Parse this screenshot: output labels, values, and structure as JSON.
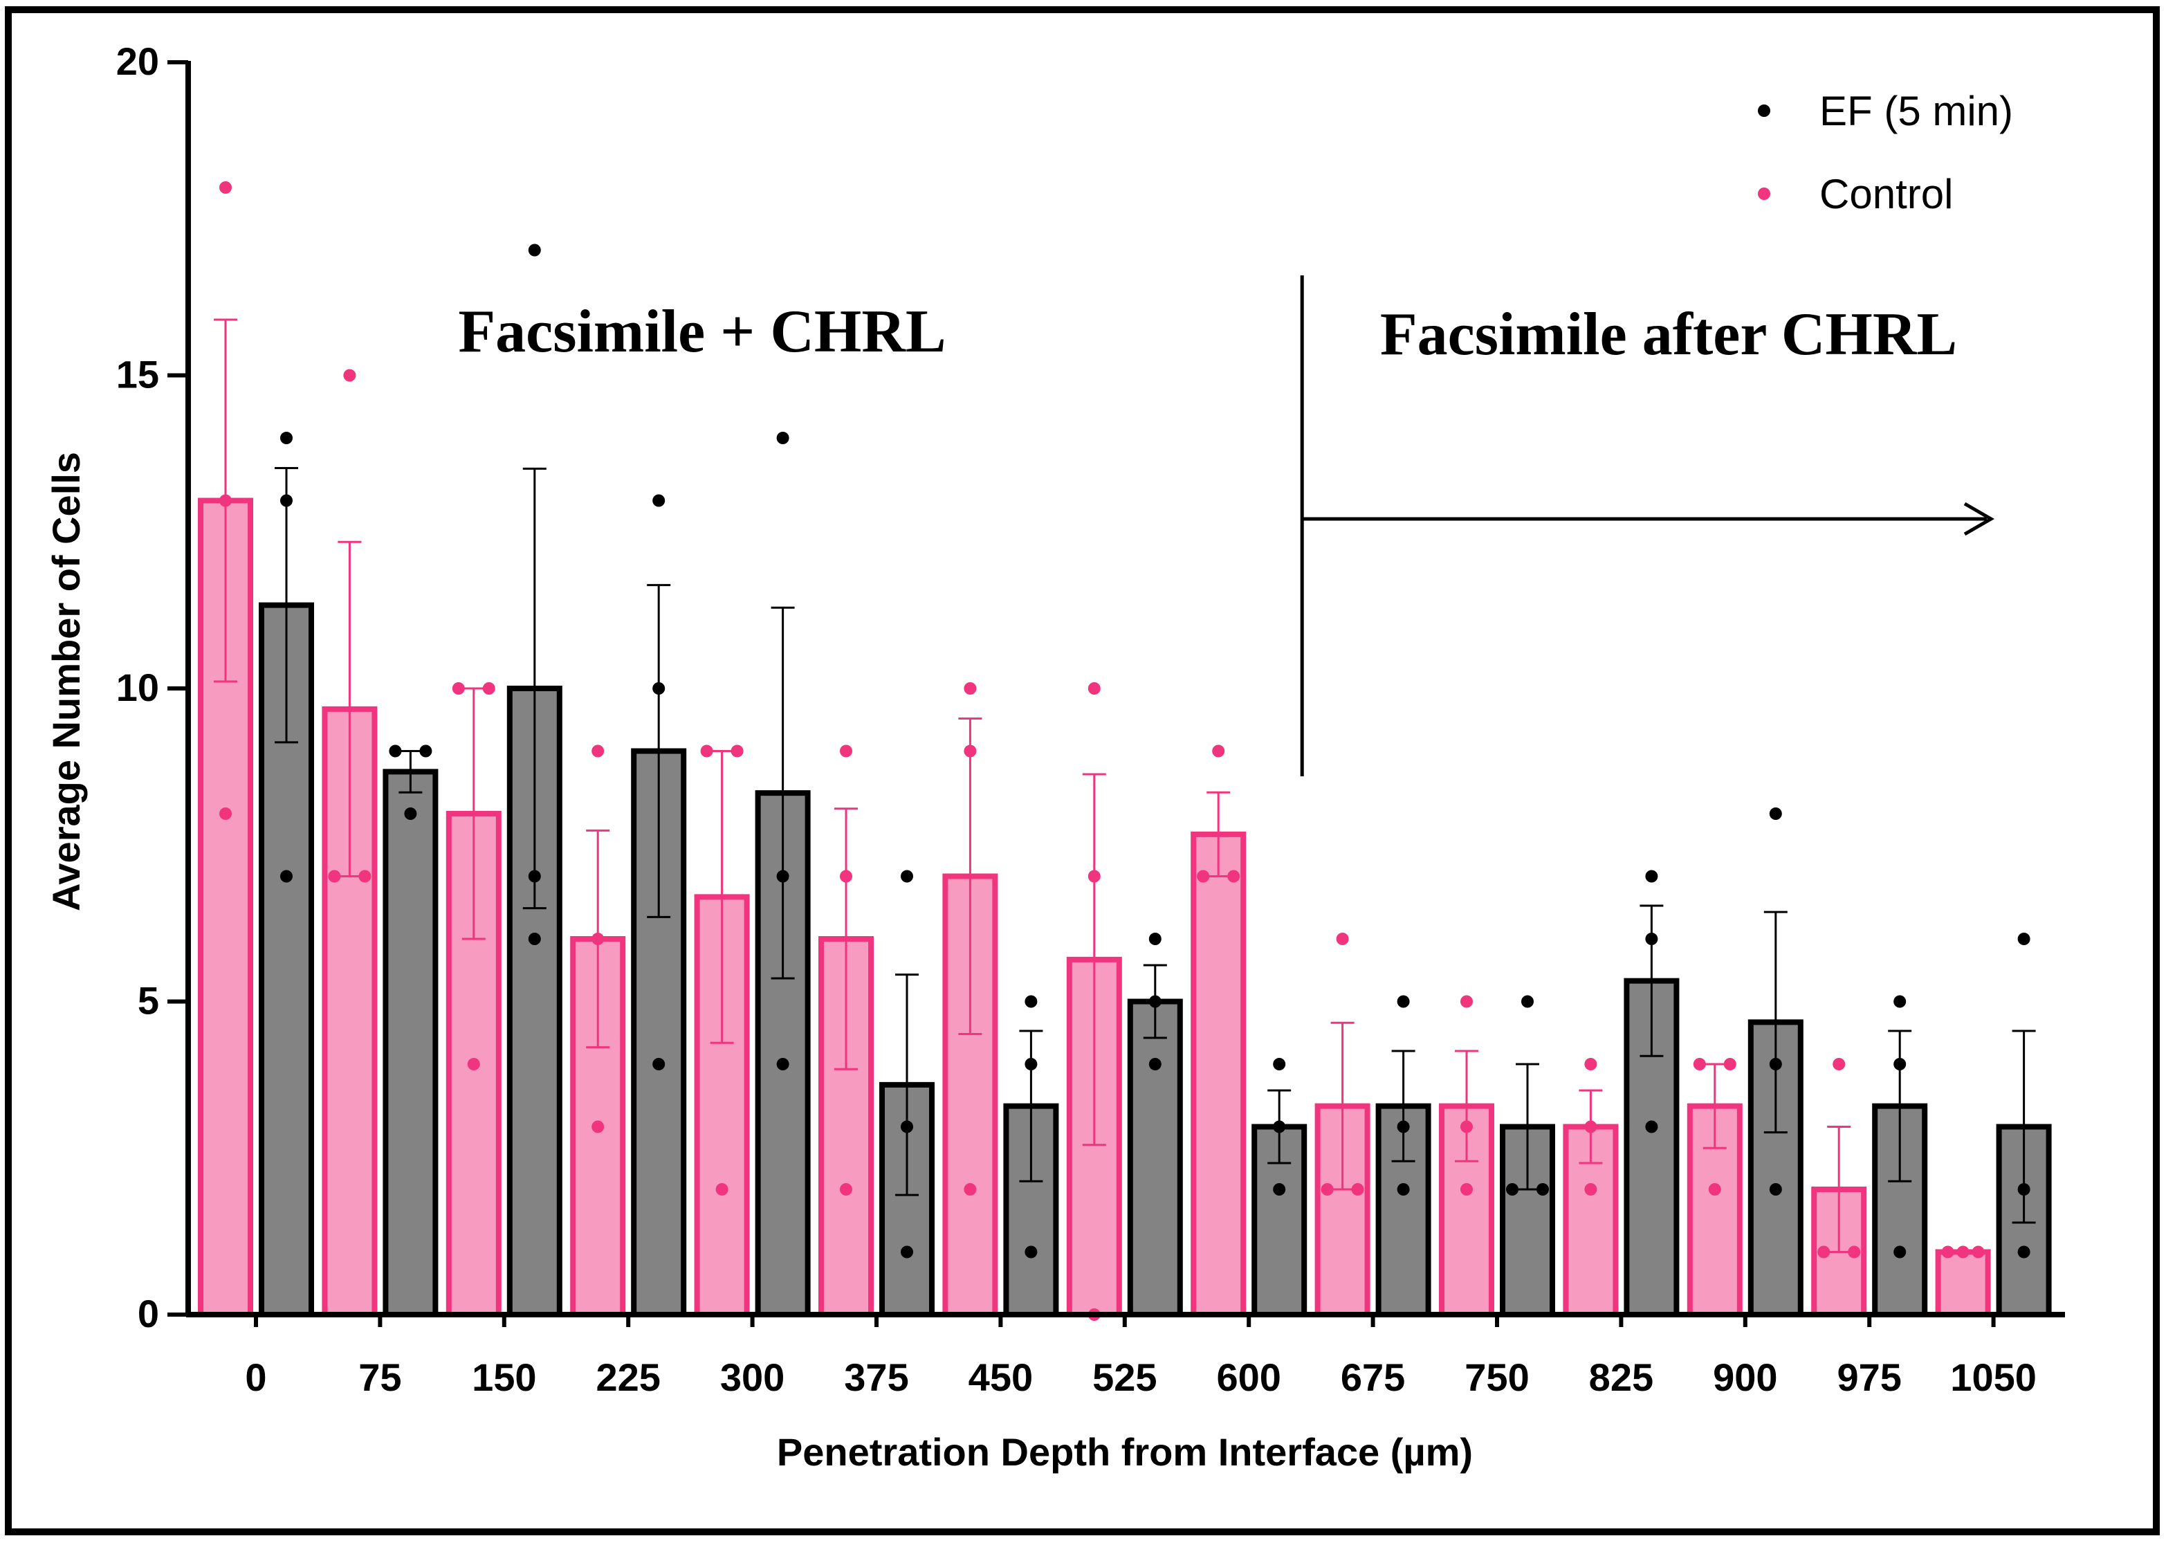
{
  "chart_data": {
    "type": "bar",
    "xlabel": "Penetration Depth from Interface (µm)",
    "ylabel": "Average Number of Cells",
    "ylim": [
      0,
      20
    ],
    "yticks": [
      "0",
      "5",
      "10",
      "15",
      "20"
    ],
    "categories": [
      "0",
      "75",
      "150",
      "225",
      "300",
      "375",
      "450",
      "525",
      "600",
      "675",
      "750",
      "825",
      "900",
      "975",
      "1050"
    ],
    "series": [
      {
        "name": "Control",
        "color": "#f0347e",
        "fill": "#f89bc0",
        "values": [
          13,
          9.67,
          8,
          6,
          6.67,
          6,
          7,
          5.67,
          7.67,
          3.33,
          3.33,
          3,
          3.33,
          2,
          1
        ],
        "errors": [
          2.89,
          2.67,
          2.0,
          1.73,
          2.33,
          2.08,
          2.52,
          2.96,
          0.67,
          1.33,
          0.88,
          0.58,
          0.67,
          1.0,
          0
        ],
        "points": [
          [
            18,
            13,
            8
          ],
          [
            15,
            7,
            7
          ],
          [
            10,
            10,
            4
          ],
          [
            9,
            6,
            3
          ],
          [
            9,
            9,
            2
          ],
          [
            9,
            7,
            2
          ],
          [
            10,
            9,
            2
          ],
          [
            10,
            7,
            0
          ],
          [
            9,
            7,
            7
          ],
          [
            6,
            2,
            2
          ],
          [
            5,
            3,
            2
          ],
          [
            4,
            3,
            2
          ],
          [
            4,
            4,
            2
          ],
          [
            4,
            1,
            1
          ],
          [
            1,
            1,
            1
          ]
        ]
      },
      {
        "name": "EF (5 min)",
        "color": "#000000",
        "fill": "#838383",
        "values": [
          11.33,
          8.67,
          10,
          9,
          8.33,
          3.67,
          3.33,
          5,
          3,
          3.33,
          3,
          5.33,
          4.67,
          3.33,
          3
        ],
        "errors": [
          2.19,
          0.33,
          3.51,
          2.65,
          2.96,
          1.76,
          1.2,
          0.58,
          0.58,
          0.88,
          1.0,
          1.2,
          1.76,
          1.2,
          1.53
        ],
        "points": [
          [
            14,
            13,
            7
          ],
          [
            9,
            9,
            8
          ],
          [
            17,
            7,
            6
          ],
          [
            13,
            10,
            4
          ],
          [
            14,
            7,
            4
          ],
          [
            7,
            3,
            1
          ],
          [
            5,
            4,
            1
          ],
          [
            6,
            5,
            4
          ],
          [
            4,
            3,
            2
          ],
          [
            5,
            3,
            2
          ],
          [
            5,
            2,
            2
          ],
          [
            7,
            6,
            3
          ],
          [
            8,
            4,
            2
          ],
          [
            5,
            4,
            1
          ],
          [
            6,
            2,
            1
          ]
        ]
      }
    ],
    "legend": {
      "position": "top-right",
      "entries": [
        "EF (5 min)",
        "Control"
      ]
    },
    "annotations": {
      "left_region": "Facsimile + CHRL",
      "right_region": "Facsimile after CHRL",
      "divider_at_category": "600"
    },
    "grid": false
  }
}
